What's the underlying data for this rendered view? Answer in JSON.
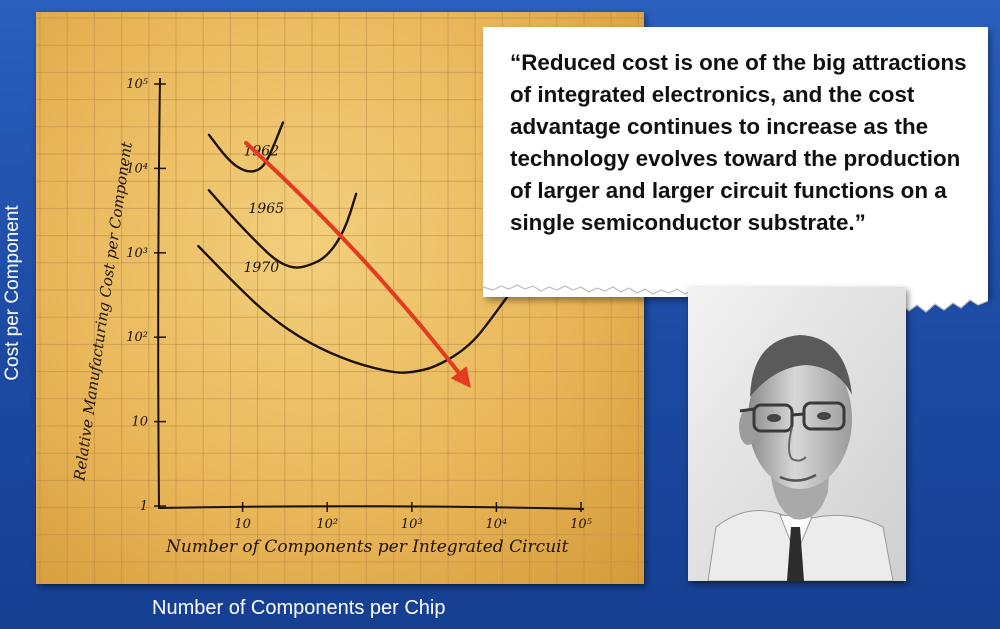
{
  "slide": {
    "y_axis_label": "Cost per Component",
    "x_axis_label": "Number of Components per Chip",
    "quote": "“Reduced cost is one of the big attractions of integrated electronics, and the cost advantage continues to increase as the technology evolves toward the production of larger and larger circuit functions on a single semiconductor substrate.”",
    "colors": {
      "background": "#1f4fa7",
      "paper": "#ebbd62",
      "arrow": "#e23b1f",
      "ink": "#1b130a"
    }
  },
  "chart_data": {
    "type": "line",
    "xlabel": "Number of Components per Integrated Circuit",
    "ylabel": "Relative Manufacturing Cost per Component",
    "x_scale": "log",
    "y_scale": "log",
    "xlim": [
      1,
      100000
    ],
    "ylim": [
      1,
      100000
    ],
    "x_ticks": [
      {
        "value": 10,
        "label": "10"
      },
      {
        "value": 100,
        "label": "10²"
      },
      {
        "value": 1000,
        "label": "10³"
      },
      {
        "value": 10000,
        "label": "10⁴"
      },
      {
        "value": 100000,
        "label": "10⁵"
      }
    ],
    "y_ticks": [
      {
        "value": 1,
        "label": "1"
      },
      {
        "value": 10,
        "label": "10"
      },
      {
        "value": 100,
        "label": "10²"
      },
      {
        "value": 1000,
        "label": "10³"
      },
      {
        "value": 10000,
        "label": "10⁴"
      },
      {
        "value": 100000,
        "label": "10⁵"
      }
    ],
    "series": [
      {
        "name": "1962",
        "x": [
          4,
          7,
          11,
          16,
          20,
          25,
          30
        ],
        "y": [
          25000,
          12000,
          9000,
          9500,
          13000,
          22000,
          35000
        ]
      },
      {
        "name": "1965",
        "x": [
          4,
          8,
          15,
          25,
          40,
          60,
          100,
          160,
          220
        ],
        "y": [
          5500,
          2500,
          1300,
          800,
          650,
          700,
          900,
          1800,
          5000
        ]
      },
      {
        "name": "1970",
        "x": [
          3,
          7,
          20,
          60,
          200,
          600,
          1000,
          2000,
          5000,
          10000,
          22000
        ],
        "y": [
          1200,
          500,
          180,
          85,
          50,
          38,
          38,
          45,
          80,
          200,
          600
        ]
      }
    ],
    "annotations": [
      {
        "type": "arrow",
        "color": "#e23b1f",
        "from": {
          "x": 11,
          "y": 20000
        },
        "to": {
          "x": 5000,
          "y": 25
        }
      }
    ]
  }
}
